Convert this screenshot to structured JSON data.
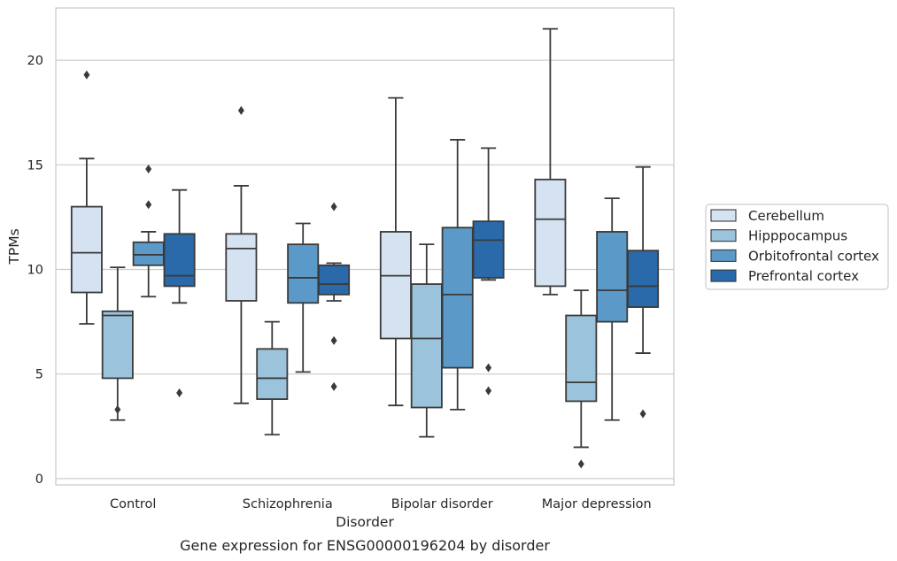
{
  "chart_data": {
    "type": "box",
    "caption": "Gene expression for ENSG00000196204 by disorder",
    "xlabel": "Disorder",
    "ylabel": "TPMs",
    "ylim": [
      -0.3,
      22.5
    ],
    "yticks": [
      0,
      5,
      10,
      15,
      20
    ],
    "grid": "horizontal",
    "legend_position": "center right, outside plot",
    "categories": [
      "Control",
      "Schizophrenia",
      "Bipolar disorder",
      "Major depression"
    ],
    "series": [
      {
        "name": "Cerebellum",
        "color": "#d4e2f1",
        "boxes": [
          {
            "whisker_low": 7.4,
            "q1": 8.9,
            "median": 10.8,
            "q3": 13.0,
            "whisker_high": 15.3,
            "outliers": [
              19.3
            ]
          },
          {
            "whisker_low": 3.6,
            "q1": 8.5,
            "median": 11.0,
            "q3": 11.7,
            "whisker_high": 14.0,
            "outliers": [
              17.6
            ]
          },
          {
            "whisker_low": 3.5,
            "q1": 6.7,
            "median": 9.7,
            "q3": 11.8,
            "whisker_high": 18.2,
            "outliers": []
          },
          {
            "whisker_low": 8.8,
            "q1": 9.2,
            "median": 12.4,
            "q3": 14.3,
            "whisker_high": 21.5,
            "outliers": []
          }
        ]
      },
      {
        "name": "Hipppocampus",
        "color": "#9cc3dc",
        "boxes": [
          {
            "whisker_low": 2.8,
            "q1": 4.8,
            "median": 7.8,
            "q3": 8.0,
            "whisker_high": 10.1,
            "outliers": [
              3.3
            ]
          },
          {
            "whisker_low": 2.1,
            "q1": 3.8,
            "median": 4.8,
            "q3": 6.2,
            "whisker_high": 7.5,
            "outliers": []
          },
          {
            "whisker_low": 2.0,
            "q1": 3.4,
            "median": 6.7,
            "q3": 9.3,
            "whisker_high": 11.2,
            "outliers": []
          },
          {
            "whisker_low": 1.5,
            "q1": 3.7,
            "median": 4.6,
            "q3": 7.8,
            "whisker_high": 9.0,
            "outliers": [
              0.7
            ]
          }
        ]
      },
      {
        "name": "Orbitofrontal cortex",
        "color": "#5b9ac8",
        "boxes": [
          {
            "whisker_low": 8.7,
            "q1": 10.2,
            "median": 10.7,
            "q3": 11.3,
            "whisker_high": 11.8,
            "outliers": [
              13.1,
              14.8
            ]
          },
          {
            "whisker_low": 5.1,
            "q1": 8.4,
            "median": 9.6,
            "q3": 11.2,
            "whisker_high": 12.2,
            "outliers": []
          },
          {
            "whisker_low": 3.3,
            "q1": 5.3,
            "median": 8.8,
            "q3": 12.0,
            "whisker_high": 16.2,
            "outliers": []
          },
          {
            "whisker_low": 2.8,
            "q1": 7.5,
            "median": 9.0,
            "q3": 11.8,
            "whisker_high": 13.4,
            "outliers": []
          }
        ]
      },
      {
        "name": "Prefrontal cortex",
        "color": "#2b6aaa",
        "boxes": [
          {
            "whisker_low": 8.4,
            "q1": 9.2,
            "median": 9.7,
            "q3": 11.7,
            "whisker_high": 13.8,
            "outliers": [
              4.1
            ]
          },
          {
            "whisker_low": 8.5,
            "q1": 8.8,
            "median": 9.3,
            "q3": 10.2,
            "whisker_high": 10.3,
            "outliers": [
              13.0,
              6.6,
              4.4
            ]
          },
          {
            "whisker_low": 9.5,
            "q1": 9.6,
            "median": 11.4,
            "q3": 12.3,
            "whisker_high": 15.8,
            "outliers": [
              5.3,
              4.2
            ]
          },
          {
            "whisker_low": 6.0,
            "q1": 8.2,
            "median": 9.2,
            "q3": 10.9,
            "whisker_high": 14.9,
            "outliers": [
              3.1
            ]
          }
        ]
      }
    ]
  }
}
